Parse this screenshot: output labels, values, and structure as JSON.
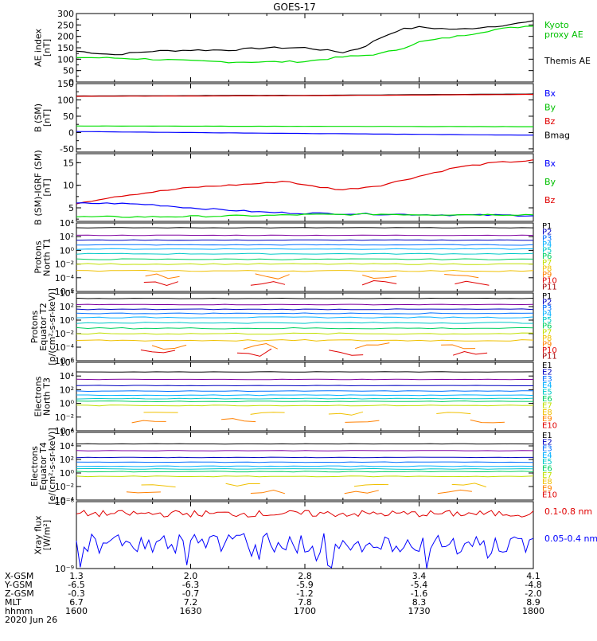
{
  "title": "GOES-17",
  "colors": {
    "black": "#000000",
    "blue": "#0000ff",
    "green": "#00e000",
    "red": "#e00000",
    "P": [
      "#000000",
      "#8000a0",
      "#0000c0",
      "#0070ff",
      "#00b0ff",
      "#00c8c8",
      "#00d060",
      "#c0e000",
      "#f0c000",
      "#ff8000",
      "#e00000",
      "#a00000"
    ]
  },
  "panels": [
    {
      "id": "ae",
      "ylabel": [
        "AE index",
        "[nT]"
      ],
      "log": false,
      "ylim": [
        0,
        300
      ],
      "ticks": [
        0,
        50,
        100,
        150,
        200,
        250,
        300
      ],
      "tick_labels": [
        "0",
        "50",
        "100",
        "150",
        "200",
        "250",
        "300"
      ],
      "legend": [
        {
          "label": "Kyoto",
          "color": "#00c000"
        },
        {
          "label": "proxy AE",
          "color": "#00c000"
        },
        {
          "label": "Themis AE",
          "color": "#000000"
        }
      ]
    },
    {
      "id": "bsm",
      "ylabel": [
        "B (SM)",
        "[nT]"
      ],
      "log": false,
      "ylim": [
        -60,
        150
      ],
      "ticks": [
        -50,
        0,
        50,
        100,
        150
      ],
      "tick_labels": [
        "-50",
        "0",
        "50",
        "100",
        "150"
      ],
      "legend": [
        {
          "label": "Bx",
          "color": "#0000ff"
        },
        {
          "label": "By",
          "color": "#00c000"
        },
        {
          "label": "Bz",
          "color": "#e00000"
        },
        {
          "label": "Bmag",
          "color": "#000000"
        }
      ]
    },
    {
      "id": "bigrf",
      "ylabel": [
        "B (SM)-IGRF (SM)",
        "[nT]"
      ],
      "log": false,
      "ylim": [
        2,
        17
      ],
      "ticks": [
        5,
        10,
        15
      ],
      "tick_labels": [
        "5",
        "10",
        "15"
      ],
      "legend": [
        {
          "label": "Bx",
          "color": "#0000ff"
        },
        {
          "label": "By",
          "color": "#00c000"
        },
        {
          "label": "Bz",
          "color": "#e00000"
        }
      ]
    },
    {
      "id": "pt1",
      "ylabel": [
        "Protons",
        "North T1"
      ],
      "log": true,
      "ylim": [
        -6,
        4
      ],
      "ticks": [
        -6,
        -4,
        -2,
        0,
        2,
        4
      ],
      "tick_labels": [
        "10⁻⁶",
        "10⁻⁴",
        "10⁻²",
        "10⁰",
        "10²",
        "10⁴"
      ],
      "channels": [
        "P1",
        "P2",
        "P3",
        "P4",
        "P5",
        "P6",
        "P7",
        "P8",
        "P9",
        "P10",
        "P11"
      ]
    },
    {
      "id": "pt2",
      "ylabel": [
        "Protons",
        "Equator T2",
        "[p/(cm²-s-sr-keV)]"
      ],
      "log": true,
      "ylim": [
        -6,
        4
      ],
      "ticks": [
        -6,
        -4,
        -2,
        0,
        2,
        4
      ],
      "tick_labels": [
        "10⁻⁶",
        "10⁻⁴",
        "10⁻²",
        "10⁰",
        "10²",
        "10⁴"
      ],
      "channels": [
        "P1",
        "P2",
        "P3",
        "P4",
        "P5",
        "P6",
        "P7",
        "P8",
        "P9",
        "P10",
        "P11"
      ]
    },
    {
      "id": "et3",
      "ylabel": [
        "Electrons",
        "North T3"
      ],
      "log": true,
      "ylim": [
        -4,
        6
      ],
      "ticks": [
        -4,
        -2,
        0,
        2,
        4,
        6
      ],
      "tick_labels": [
        "10⁻⁴",
        "10⁻²",
        "10⁰",
        "10²",
        "10⁴",
        "10⁶"
      ],
      "channels": [
        "E1",
        "E2",
        "E3",
        "E4",
        "E5",
        "E6",
        "E7",
        "E8",
        "E9",
        "E10"
      ]
    },
    {
      "id": "et4",
      "ylabel": [
        "Electrons",
        "Equator T4",
        "[e/(cm²-s-sr-keV)]"
      ],
      "log": true,
      "ylim": [
        -4,
        6
      ],
      "ticks": [
        -4,
        -2,
        0,
        2,
        4,
        6
      ],
      "tick_labels": [
        "10⁻⁴",
        "10⁻²",
        "10⁰",
        "10²",
        "10⁴",
        "10⁶"
      ],
      "channels": [
        "E1",
        "E2",
        "E3",
        "E4",
        "E5",
        "E6",
        "E7",
        "E8",
        "E9",
        "E10"
      ]
    },
    {
      "id": "xray",
      "ylabel": [
        "Xray flux",
        "[W/m²]"
      ],
      "log": true,
      "ylim": [
        -9,
        -8
      ],
      "ticks": [
        -9,
        -8
      ],
      "tick_labels": [
        "10⁻⁹",
        "10⁻⁸"
      ],
      "legend": [
        {
          "label": "0.1-0.8 nm",
          "color": "#e00000"
        },
        {
          "label": "0.05-0.4 nm",
          "color": "#0000ff"
        }
      ]
    }
  ],
  "xaxis": {
    "row_labels": [
      "X-GSM",
      "Y-GSM",
      "Z-GSM",
      "MLT",
      "hhmm",
      "2020 Jun 26"
    ],
    "columns": [
      [
        "1.3",
        "-6.5",
        "-0.3",
        "6.7",
        "1600"
      ],
      [
        "2.0",
        "-6.3",
        "-0.7",
        "7.2",
        "1630"
      ],
      [
        "2.8",
        "-5.9",
        "-1.2",
        "7.8",
        "1700"
      ],
      [
        "3.4",
        "-5.4",
        "-1.6",
        "8.3",
        "1730"
      ],
      [
        "4.1",
        "-4.8",
        "-2.0",
        "8.9",
        "1800"
      ]
    ]
  },
  "chart_data": {
    "type": "line",
    "title": "GOES-17",
    "x_unit": "minutes",
    "x_range": [
      0,
      120
    ],
    "x_tick_labels": [
      "1600",
      "1630",
      "1700",
      "1730",
      "1800"
    ],
    "ae": {
      "ylabel": "AE index [nT]",
      "series": [
        {
          "name": "Themis AE",
          "color": "#000000",
          "x": [
            0,
            10,
            20,
            30,
            40,
            50,
            60,
            65,
            70,
            75,
            80,
            85,
            90,
            100,
            110,
            120
          ],
          "y": [
            135,
            120,
            135,
            140,
            140,
            150,
            150,
            140,
            130,
            150,
            195,
            230,
            240,
            230,
            245,
            265
          ]
        },
        {
          "name": "Kyoto proxy AE",
          "color": "#00e000",
          "x": [
            0,
            10,
            20,
            30,
            40,
            50,
            60,
            65,
            70,
            75,
            80,
            85,
            90,
            100,
            110,
            120
          ],
          "y": [
            108,
            105,
            100,
            92,
            88,
            88,
            90,
            100,
            110,
            115,
            125,
            145,
            175,
            200,
            230,
            248
          ]
        }
      ]
    },
    "bsm": {
      "ylabel": "B (SM) [nT]",
      "series": [
        {
          "name": "Bmag",
          "color": "#000000",
          "x": [
            0,
            60,
            120
          ],
          "y": [
            112,
            114,
            118
          ]
        },
        {
          "name": "Bz",
          "color": "#e00000",
          "x": [
            0,
            60,
            120
          ],
          "y": [
            111,
            113,
            117
          ]
        },
        {
          "name": "By",
          "color": "#00e000",
          "x": [
            0,
            60,
            120
          ],
          "y": [
            20,
            19,
            18
          ]
        },
        {
          "name": "Bx",
          "color": "#0000ff",
          "x": [
            0,
            60,
            120
          ],
          "y": [
            3,
            -3,
            -8
          ]
        }
      ]
    },
    "bigrf": {
      "ylabel": "B (SM)-IGRF (SM) [nT]",
      "series": [
        {
          "name": "Bz",
          "color": "#e00000",
          "x": [
            0,
            10,
            20,
            30,
            40,
            50,
            55,
            60,
            70,
            80,
            90,
            100,
            110,
            120
          ],
          "y": [
            6,
            7.5,
            8.5,
            9.5,
            10,
            10.5,
            11,
            10,
            9,
            10,
            12,
            14,
            15,
            15.5
          ]
        },
        {
          "name": "Bx",
          "color": "#0000ff",
          "x": [
            0,
            10,
            20,
            30,
            40,
            50,
            60,
            70,
            80,
            90,
            100,
            110,
            120
          ],
          "y": [
            6,
            6,
            5.7,
            5,
            4.5,
            4,
            3.8,
            3.7,
            3.6,
            3.5,
            3.4,
            3.4,
            3.3
          ]
        },
        {
          "name": "By",
          "color": "#00e000",
          "x": [
            0,
            10,
            20,
            30,
            40,
            50,
            60,
            70,
            80,
            90,
            100,
            110,
            120
          ],
          "y": [
            3,
            3,
            3,
            3.1,
            3.2,
            3.3,
            3.5,
            3.5,
            3.6,
            3.5,
            3.5,
            3.5,
            3.5
          ]
        }
      ]
    },
    "protons_t1": {
      "ylabel": "Protons North T1 (log10 flux)",
      "levels": [
        3.3,
        2.2,
        1.5,
        0.8,
        0.2,
        -0.5,
        -1.3,
        -2.0,
        -3.0,
        -3.8,
        -4.8
      ]
    },
    "protons_t2": {
      "ylabel": "Protons Equator T2 (log10 flux)",
      "levels": [
        3.2,
        2.3,
        1.6,
        1.0,
        0.4,
        -0.4,
        -1.2,
        -2.0,
        -3.0,
        -3.8,
        -4.8
      ]
    },
    "electrons_t3": {
      "ylabel": "Electrons North T3 (log10 flux)",
      "levels": [
        4.6,
        3.5,
        2.6,
        1.8,
        1.2,
        0.7,
        0.3,
        -0.3,
        -1.5,
        -2.5
      ]
    },
    "electrons_t4": {
      "ylabel": "Electrons Equator T4 (log10 flux)",
      "levels": [
        4.3,
        3.3,
        2.3,
        1.6,
        1.0,
        0.6,
        0.2,
        -0.5,
        -1.8,
        -2.8
      ]
    },
    "xray": {
      "ylabel": "Xray flux [W/m²]",
      "series": [
        {
          "name": "0.1-0.8 nm",
          "color": "#e00000",
          "level_log10": -8.18,
          "noise": 0.05
        },
        {
          "name": "0.05-0.4 nm",
          "color": "#0000ff",
          "level_log10": -8.62,
          "noise": 0.15
        }
      ]
    }
  }
}
